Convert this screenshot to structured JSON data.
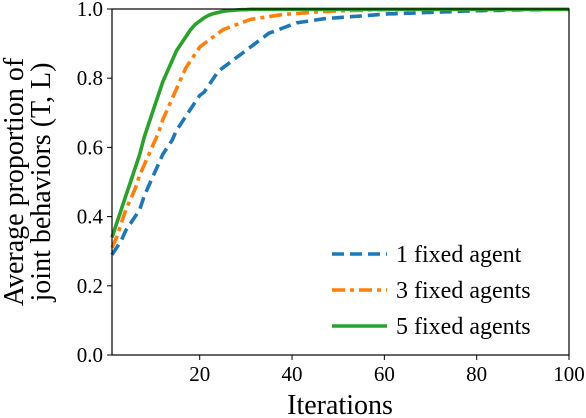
{
  "chart_data": {
    "type": "line",
    "xlabel": "Iterations",
    "ylabel_lines": [
      "Average proportion of",
      "joint behaviors (T, L)"
    ],
    "xlim": [
      1,
      100
    ],
    "ylim": [
      0.0,
      1.0
    ],
    "xticks": [
      20,
      40,
      60,
      80,
      100
    ],
    "xtick_labels": [
      "20",
      "40",
      "60",
      "80",
      "100"
    ],
    "yticks": [
      0.0,
      0.2,
      0.4,
      0.6,
      0.8,
      1.0
    ],
    "ytick_labels": [
      "0.0",
      "0.2",
      "0.4",
      "0.6",
      "0.8",
      "1.0"
    ],
    "grid": false,
    "legend_position": "lower-right",
    "x": [
      1,
      2,
      3,
      4,
      5,
      6,
      7,
      8,
      9,
      10,
      11,
      12,
      13,
      14,
      15,
      16,
      17,
      18,
      19,
      20,
      21,
      22,
      23,
      24,
      25,
      26,
      27,
      28,
      29,
      30,
      31,
      32,
      33,
      34,
      35,
      36,
      37,
      38,
      39,
      40,
      41,
      42,
      43,
      44,
      45,
      46,
      47,
      48,
      49,
      50,
      51,
      52,
      53,
      54,
      55,
      56,
      57,
      58,
      59,
      60,
      61,
      62,
      63,
      64,
      65,
      66,
      67,
      68,
      69,
      70,
      71,
      72,
      73,
      74,
      75,
      76,
      77,
      78,
      79,
      80,
      81,
      82,
      83,
      84,
      85,
      86,
      87,
      88,
      89,
      90,
      91,
      92,
      93,
      94,
      95,
      96,
      97,
      98,
      99,
      100
    ],
    "series": [
      {
        "name": "1 fixed agent",
        "color": "#1f77b4",
        "style": "dashed",
        "values": [
          0.29,
          0.31,
          0.33,
          0.36,
          0.38,
          0.4,
          0.42,
          0.46,
          0.49,
          0.52,
          0.55,
          0.58,
          0.6,
          0.62,
          0.65,
          0.67,
          0.69,
          0.71,
          0.73,
          0.75,
          0.76,
          0.78,
          0.8,
          0.82,
          0.83,
          0.84,
          0.85,
          0.86,
          0.87,
          0.88,
          0.89,
          0.9,
          0.91,
          0.92,
          0.93,
          0.935,
          0.94,
          0.945,
          0.95,
          0.955,
          0.96,
          0.962,
          0.964,
          0.966,
          0.968,
          0.97,
          0.972,
          0.973,
          0.974,
          0.975,
          0.976,
          0.977,
          0.978,
          0.979,
          0.98,
          0.981,
          0.982,
          0.983,
          0.984,
          0.985,
          0.986,
          0.986,
          0.987,
          0.987,
          0.988,
          0.988,
          0.989,
          0.989,
          0.99,
          0.99,
          0.991,
          0.991,
          0.992,
          0.992,
          0.993,
          0.993,
          0.994,
          0.994,
          0.995,
          0.995,
          0.995,
          0.996,
          0.996,
          0.996,
          0.996,
          0.997,
          0.997,
          0.997,
          0.997,
          0.998,
          0.998,
          0.998,
          0.998,
          0.998,
          0.999,
          0.999,
          0.999,
          0.999,
          0.999,
          0.999
        ]
      },
      {
        "name": "3 fixed agents",
        "color": "#ff7f0e",
        "style": "dashdot",
        "values": [
          0.31,
          0.34,
          0.38,
          0.42,
          0.45,
          0.48,
          0.52,
          0.55,
          0.58,
          0.61,
          0.64,
          0.68,
          0.71,
          0.74,
          0.77,
          0.8,
          0.83,
          0.85,
          0.87,
          0.89,
          0.9,
          0.91,
          0.92,
          0.93,
          0.94,
          0.945,
          0.95,
          0.955,
          0.96,
          0.965,
          0.97,
          0.972,
          0.974,
          0.976,
          0.978,
          0.98,
          0.982,
          0.984,
          0.985,
          0.986,
          0.987,
          0.988,
          0.989,
          0.99,
          0.991,
          0.992,
          0.993,
          0.993,
          0.994,
          0.994,
          0.995,
          0.995,
          0.996,
          0.996,
          0.996,
          0.997,
          0.997,
          0.997,
          0.998,
          0.998,
          0.998,
          0.998,
          0.998,
          0.999,
          0.999,
          0.999,
          0.999,
          0.999,
          0.999,
          0.999,
          0.999,
          0.999,
          0.999,
          0.999,
          0.999,
          0.999,
          0.999,
          0.999,
          0.999,
          0.999,
          0.999,
          0.999,
          0.999,
          0.999,
          0.999,
          0.999,
          0.999,
          0.999,
          0.999,
          0.999,
          0.999,
          0.999,
          0.999,
          0.999,
          0.999,
          0.999,
          0.999,
          0.999,
          0.999,
          0.999
        ]
      },
      {
        "name": "5 fixed agents",
        "color": "#2ca02c",
        "style": "solid",
        "values": [
          0.34,
          0.38,
          0.42,
          0.46,
          0.5,
          0.54,
          0.58,
          0.63,
          0.67,
          0.71,
          0.75,
          0.79,
          0.82,
          0.85,
          0.88,
          0.9,
          0.92,
          0.94,
          0.955,
          0.965,
          0.975,
          0.982,
          0.987,
          0.99,
          0.993,
          0.995,
          0.996,
          0.997,
          0.998,
          0.998,
          0.999,
          0.999,
          0.999,
          0.999,
          0.999,
          0.999,
          0.999,
          0.999,
          0.999,
          0.999,
          0.999,
          0.999,
          0.999,
          0.999,
          0.999,
          0.999,
          0.999,
          0.999,
          0.999,
          0.999,
          0.999,
          0.999,
          0.999,
          0.999,
          0.999,
          0.999,
          0.999,
          0.999,
          0.999,
          0.999,
          0.999,
          0.999,
          0.999,
          0.999,
          0.999,
          0.999,
          0.999,
          0.999,
          0.999,
          0.999,
          0.999,
          0.999,
          0.999,
          0.999,
          0.999,
          0.999,
          0.999,
          0.999,
          0.999,
          0.999,
          0.999,
          0.999,
          0.999,
          0.999,
          0.999,
          0.999,
          0.999,
          0.999,
          0.999,
          0.999,
          0.999,
          0.999,
          0.999,
          0.999,
          0.999,
          0.999,
          0.999,
          0.999,
          0.999,
          0.999
        ]
      }
    ]
  }
}
